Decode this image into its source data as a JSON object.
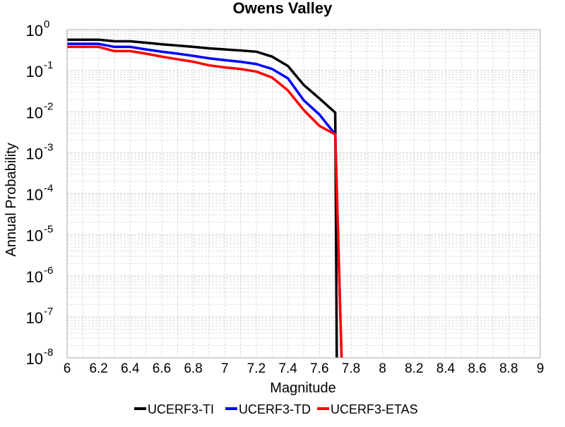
{
  "chart_data": {
    "type": "line",
    "title": "Owens Valley",
    "xlabel": "Magnitude",
    "ylabel": "Annual Probability",
    "xlim": [
      6,
      9
    ],
    "ylim": [
      1e-08,
      1
    ],
    "yscale": "log",
    "grid": true,
    "legend_position": "bottom-center",
    "x_ticks": [
      "6",
      "6.2",
      "6.4",
      "6.6",
      "6.8",
      "7",
      "7.2",
      "7.4",
      "7.6",
      "7.8",
      "8",
      "8.2",
      "8.4",
      "8.6",
      "8.8",
      "9"
    ],
    "y_ticks": [
      {
        "base": "10",
        "exp": "0"
      },
      {
        "base": "10",
        "exp": "-1"
      },
      {
        "base": "10",
        "exp": "-2"
      },
      {
        "base": "10",
        "exp": "-3"
      },
      {
        "base": "10",
        "exp": "-4"
      },
      {
        "base": "10",
        "exp": "-5"
      },
      {
        "base": "10",
        "exp": "-6"
      },
      {
        "base": "10",
        "exp": "-7"
      },
      {
        "base": "10",
        "exp": "-8"
      }
    ],
    "series": [
      {
        "name": "UCERF3-TI",
        "color": "#000000",
        "x": [
          6.0,
          6.1,
          6.2,
          6.3,
          6.4,
          6.5,
          6.6,
          6.7,
          6.8,
          6.9,
          7.0,
          7.1,
          7.2,
          7.3,
          7.4,
          7.5,
          7.6,
          7.7,
          7.71
        ],
        "y": [
          0.57,
          0.57,
          0.57,
          0.52,
          0.52,
          0.48,
          0.44,
          0.41,
          0.38,
          0.35,
          0.33,
          0.31,
          0.29,
          0.22,
          0.13,
          0.045,
          0.021,
          0.0095,
          1e-08
        ]
      },
      {
        "name": "UCERF3-TD",
        "color": "#0000ff",
        "x": [
          6.0,
          6.1,
          6.2,
          6.3,
          6.4,
          6.5,
          6.6,
          6.7,
          6.8,
          6.9,
          7.0,
          7.1,
          7.2,
          7.3,
          7.4,
          7.5,
          7.6,
          7.7,
          7.74
        ],
        "y": [
          0.45,
          0.45,
          0.45,
          0.38,
          0.38,
          0.33,
          0.29,
          0.26,
          0.23,
          0.2,
          0.18,
          0.165,
          0.145,
          0.11,
          0.065,
          0.019,
          0.0085,
          0.0028,
          1e-08
        ]
      },
      {
        "name": "UCERF3-ETAS",
        "color": "#ff0000",
        "x": [
          6.0,
          6.1,
          6.2,
          6.3,
          6.4,
          6.5,
          6.6,
          6.7,
          6.8,
          6.9,
          7.0,
          7.1,
          7.2,
          7.3,
          7.4,
          7.5,
          7.6,
          7.7,
          7.74
        ],
        "y": [
          0.38,
          0.38,
          0.38,
          0.3,
          0.3,
          0.26,
          0.22,
          0.19,
          0.165,
          0.135,
          0.12,
          0.11,
          0.095,
          0.068,
          0.033,
          0.011,
          0.0045,
          0.0028,
          1e-08
        ]
      }
    ]
  }
}
